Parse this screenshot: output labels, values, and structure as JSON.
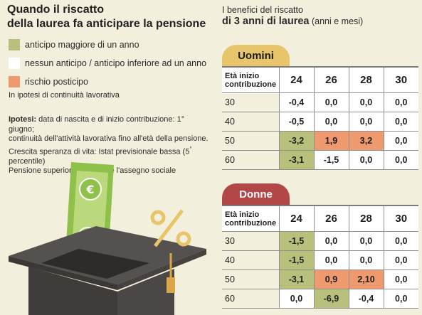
{
  "title": {
    "line1": "Quando il riscatto",
    "line2": "della laurea fa anticipare la pensione"
  },
  "legend": [
    {
      "label": "anticipo maggiore di un anno",
      "color": "#b9c07c"
    },
    {
      "label": "nessun anticipo / anticipo inferiore ad un anno",
      "color": "#ffffff"
    },
    {
      "label": "rischio posticipo",
      "color": "#ef9a6e"
    }
  ],
  "note": "In ipotesi di continuità lavorativa",
  "hypothesis": {
    "label": "Ipotesi:",
    "line1": " data di nascita e di inizio contribuzione: 1° giugno;",
    "line2": "continuità dell'attività lavorativa fino all'età della pensione.",
    "line3_a": "Crescita speranza di vita: Istat previsionale bassa (5",
    "line3_sup": "°",
    "line3_b": " percentile)",
    "line4": "Pensione superiore a 2.8 volte l'assegno sociale"
  },
  "right_title": {
    "line1": "I benefici del riscatto",
    "strong": "di 3 anni di laurea",
    "suffix": " (anni e mesi)"
  },
  "tables": {
    "uomini": {
      "tab": "Uomini",
      "header_line1": "Età inizio",
      "header_line2": "contribuzione",
      "ages": [
        "24",
        "26",
        "28",
        "30"
      ],
      "rows": [
        {
          "start": "30",
          "values": [
            "-0,4",
            "0,0",
            "0,0",
            "0,0"
          ],
          "colors": [
            "white",
            "white",
            "white",
            "white"
          ]
        },
        {
          "start": "40",
          "values": [
            "-0,5",
            "0,0",
            "0,0",
            "0,0"
          ],
          "colors": [
            "white",
            "white",
            "white",
            "white"
          ]
        },
        {
          "start": "50",
          "values": [
            "-3,2",
            "1,9",
            "3,2",
            "0,0"
          ],
          "colors": [
            "green",
            "orange",
            "orange",
            "white"
          ]
        },
        {
          "start": "60",
          "values": [
            "-3,1",
            "-1,5",
            "0,0",
            "0,0"
          ],
          "colors": [
            "green",
            "white",
            "white",
            "white"
          ]
        }
      ]
    },
    "donne": {
      "tab": "Donne",
      "header_line1": "Età inizio",
      "header_line2": "contribuzione",
      "ages": [
        "24",
        "26",
        "28",
        "30"
      ],
      "rows": [
        {
          "start": "30",
          "values": [
            "-1,5",
            "0,0",
            "0,0",
            "0,0"
          ],
          "colors": [
            "green",
            "white",
            "white",
            "white"
          ]
        },
        {
          "start": "40",
          "values": [
            "-1,5",
            "0,0",
            "0,0",
            "0,0"
          ],
          "colors": [
            "green",
            "white",
            "white",
            "white"
          ]
        },
        {
          "start": "50",
          "values": [
            "-3,1",
            "0,9",
            "2,10",
            "0,0"
          ],
          "colors": [
            "green",
            "orange",
            "orange",
            "white"
          ]
        },
        {
          "start": "60",
          "values": [
            "0,0",
            "-6,9",
            "-0,4",
            "0,0"
          ],
          "colors": [
            "white",
            "green",
            "white",
            "white"
          ]
        }
      ]
    }
  },
  "illustration": {
    "elements": [
      "graduation-cap-icon",
      "banknote-icon",
      "euro-icon",
      "percent-icon"
    ]
  }
}
